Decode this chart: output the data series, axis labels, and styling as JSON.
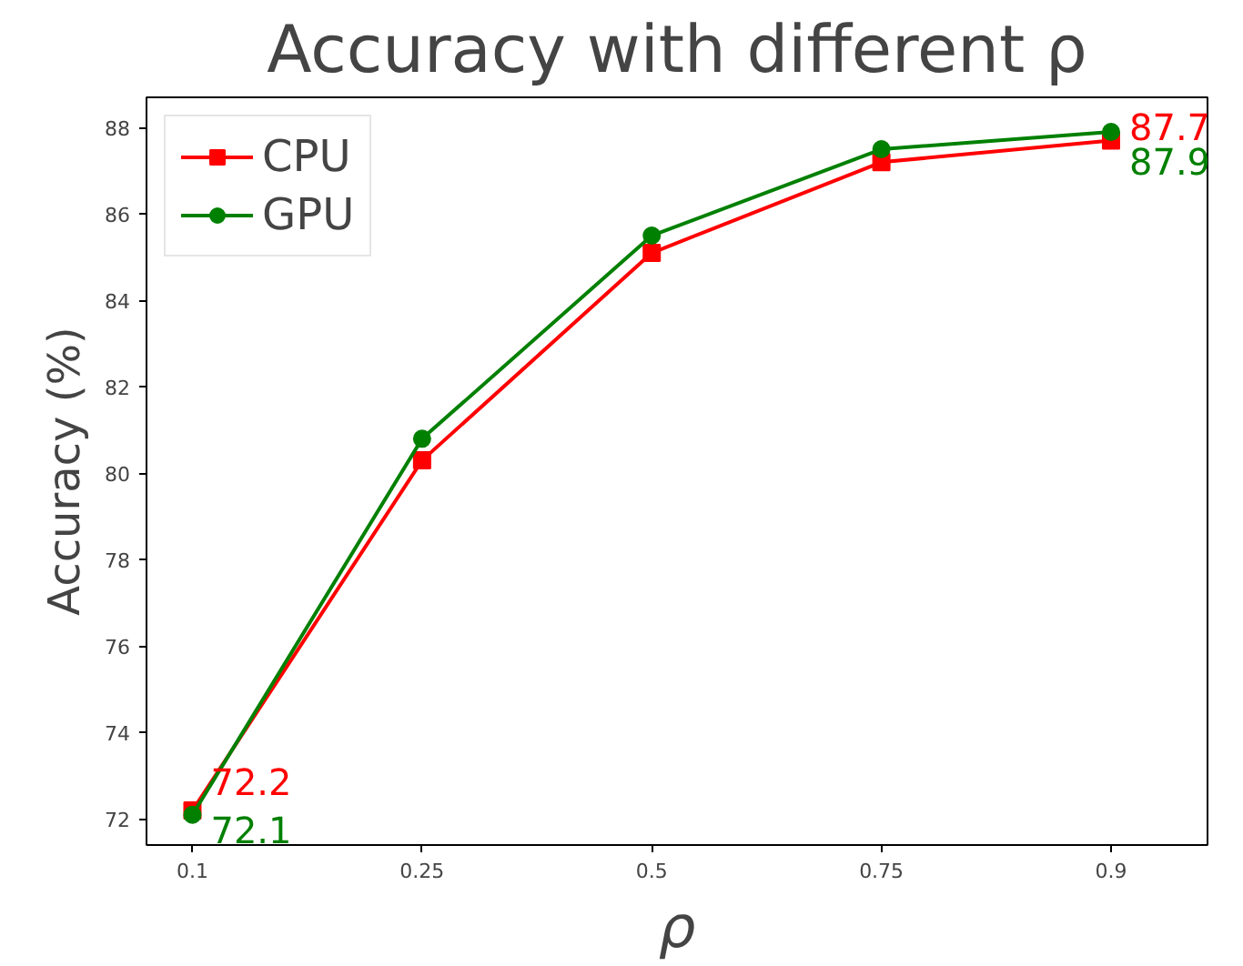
{
  "chart_data": {
    "type": "line",
    "title": "Accuracy with different ρ",
    "xlabel": "ρ",
    "ylabel": "Accuracy (%)",
    "categories": [
      "0.1",
      "0.25",
      "0.5",
      "0.75",
      "0.9"
    ],
    "series": [
      {
        "name": "CPU",
        "color": "#ff0000",
        "marker": "square",
        "values": [
          72.2,
          80.3,
          85.1,
          87.2,
          87.7
        ],
        "value_labels": [
          "72.2",
          null,
          null,
          null,
          "87.7"
        ]
      },
      {
        "name": "GPU",
        "color": "#008000",
        "marker": "circle",
        "values": [
          72.1,
          80.8,
          85.5,
          87.5,
          87.9
        ],
        "value_labels": [
          "72.1",
          null,
          null,
          null,
          "87.9"
        ]
      }
    ],
    "ylim": [
      71.4,
      88.7
    ],
    "yticks": [
      72,
      74,
      76,
      78,
      80,
      82,
      84,
      86,
      88
    ],
    "grid": false,
    "legend": "top left",
    "line_style": "solid"
  }
}
